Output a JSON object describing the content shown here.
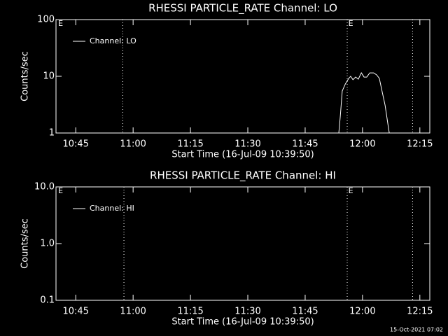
{
  "chart_data": [
    {
      "type": "line",
      "title": "RHESSI PARTICLE_RATE Channel: LO",
      "xlabel": "Start Time (16-Jul-09 10:39:50)",
      "ylabel": "Counts/sec",
      "log_y": true,
      "legend": "top-left",
      "xlim": [
        639.83,
        737.6
      ],
      "xticks": [
        {
          "value": 645,
          "label": "10:45"
        },
        {
          "value": 660,
          "label": "11:00"
        },
        {
          "value": 675,
          "label": "11:15"
        },
        {
          "value": 690,
          "label": "11:30"
        },
        {
          "value": 705,
          "label": "11:45"
        },
        {
          "value": 720,
          "label": "12:00"
        },
        {
          "value": 735,
          "label": "12:15"
        }
      ],
      "ylim": [
        1,
        100
      ],
      "yticks": [
        1,
        10,
        100
      ],
      "vlines": [
        657.3,
        716.0,
        733.1
      ],
      "annotations": [
        {
          "x": 640.4,
          "text": "E"
        },
        {
          "x": 716.3,
          "text": "E"
        }
      ],
      "series": [
        {
          "name": "Channel: LO",
          "color": "#ffffff",
          "x": [
            713.8,
            714.2,
            714.7,
            715.5,
            716.4,
            716.9,
            717.5,
            718.2,
            718.9,
            719.7,
            720.4,
            721.1,
            721.9,
            722.9,
            723.7,
            724.4,
            725.1,
            725.9,
            726.6,
            727.0
          ],
          "values": [
            1,
            2,
            5.5,
            7.3,
            9.2,
            10,
            8.7,
            9.7,
            8.9,
            11.5,
            9.7,
            9.7,
            11.5,
            11.5,
            10.6,
            9.2,
            5.5,
            3.1,
            1.5,
            1
          ]
        }
      ]
    },
    {
      "type": "line",
      "title": "RHESSI PARTICLE_RATE Channel: HI",
      "xlabel": "Start Time (16-Jul-09 10:39:50)",
      "ylabel": "Counts/sec",
      "log_y": true,
      "legend": "top-left",
      "xlim": [
        639.83,
        737.6
      ],
      "xticks": [
        {
          "value": 645,
          "label": "10:45"
        },
        {
          "value": 660,
          "label": "11:00"
        },
        {
          "value": 675,
          "label": "11:15"
        },
        {
          "value": 690,
          "label": "11:30"
        },
        {
          "value": 705,
          "label": "11:45"
        },
        {
          "value": 720,
          "label": "12:00"
        },
        {
          "value": 735,
          "label": "12:15"
        }
      ],
      "ylim": [
        0.1,
        10
      ],
      "yticks": [
        0.1,
        {
          "value": 1,
          "label": "1.0"
        },
        {
          "value": 10,
          "label": "10.0"
        }
      ],
      "vlines": [
        657.6,
        716.0,
        733.1
      ],
      "annotations": [
        {
          "x": 640.4,
          "text": "E"
        },
        {
          "x": 716.3,
          "text": "E"
        }
      ],
      "series": [
        {
          "name": "Channel: HI",
          "color": "#ffffff",
          "x": [],
          "values": []
        }
      ]
    }
  ],
  "footer": "15-Oct-2021 07:02"
}
